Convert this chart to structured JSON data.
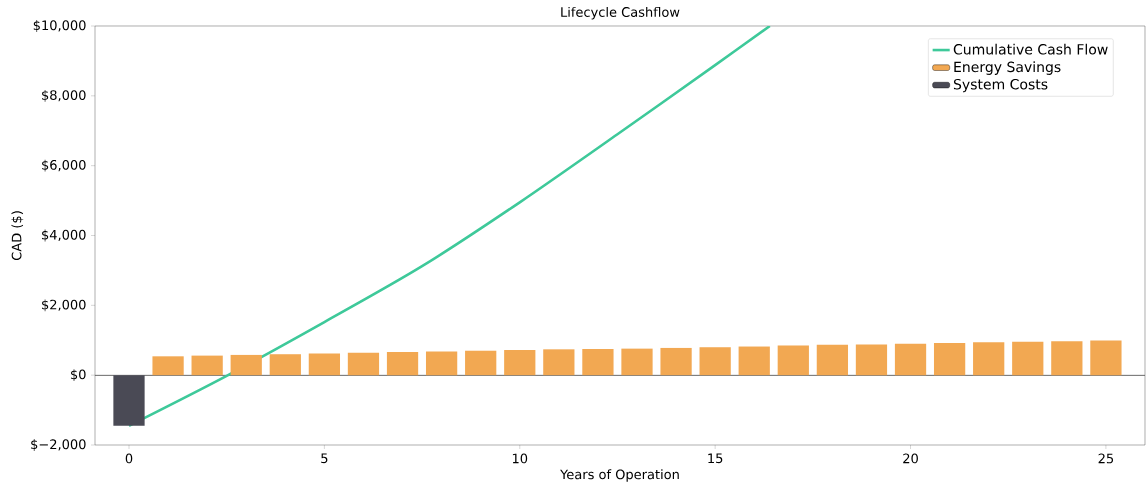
{
  "chart_data": {
    "type": "bar",
    "title": "Lifecycle Cashflow",
    "xlabel": "Years of Operation",
    "ylabel": "CAD ($)",
    "xlim": [
      -0.87,
      26
    ],
    "xticks": [
      0,
      5,
      10,
      15,
      20,
      25
    ],
    "ylim": [
      -2000,
      10000
    ],
    "yticks": [
      {
        "value": -2000,
        "label": "$−2,000"
      },
      {
        "value": 0,
        "label": "$0"
      },
      {
        "value": 2000,
        "label": "$2,000"
      },
      {
        "value": 4000,
        "label": "$4,000"
      },
      {
        "value": 6000,
        "label": "$6,000"
      },
      {
        "value": 8000,
        "label": "$8,000"
      },
      {
        "value": 10000,
        "label": "$10,000"
      }
    ],
    "legend": "top right",
    "grid": false,
    "ref_lines": [
      {
        "axis": "y",
        "value": 0,
        "color": "#555555"
      }
    ],
    "series": [
      {
        "name": "Cumulative Cash Flow",
        "type": "line",
        "color": "#3ec99a",
        "x": [
          0,
          2.5,
          5,
          7.5,
          10,
          12.5,
          15,
          16.4
        ],
        "values": [
          -1450,
          -20,
          1520,
          3120,
          4950,
          6900,
          8880,
          10000
        ]
      },
      {
        "name": "Energy Savings",
        "color": "#f2a852",
        "x": [
          1,
          2,
          3,
          4,
          5,
          6,
          7,
          8,
          9,
          10,
          11,
          12,
          13,
          14,
          15,
          16,
          17,
          18,
          19,
          20,
          21,
          22,
          23,
          24,
          25
        ],
        "values": [
          540,
          560,
          580,
          600,
          620,
          640,
          660,
          680,
          700,
          720,
          740,
          750,
          760,
          780,
          800,
          820,
          850,
          870,
          880,
          900,
          920,
          940,
          960,
          970,
          990
        ]
      },
      {
        "name": "System Costs",
        "color": "#4a4a55",
        "x": [
          0
        ],
        "values": [
          -1450
        ]
      }
    ]
  }
}
